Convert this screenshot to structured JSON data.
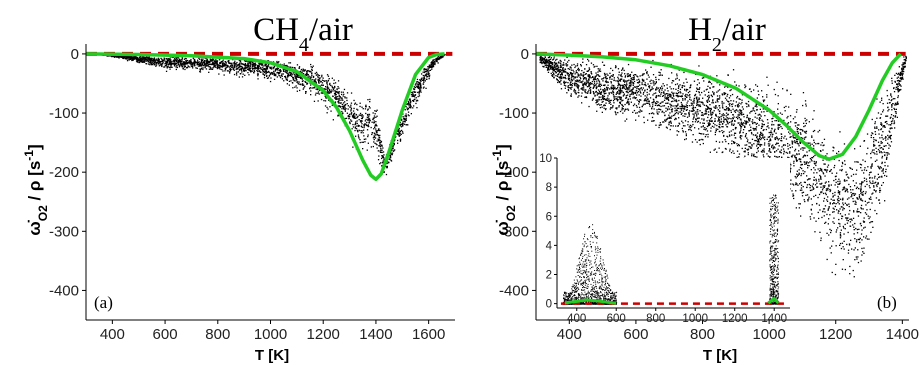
{
  "chart_data": [
    {
      "type": "scatter",
      "panel_label": "(a)",
      "title": "CH4/air",
      "title_parts": [
        "CH",
        "4",
        "/air"
      ],
      "xlabel": "T [K]",
      "ylabel": "ω̇O2 / ρ [s-1]",
      "ylabel_parts": [
        "ω̇",
        "O2",
        " / ρ ",
        "[s",
        "-1",
        "]"
      ],
      "xlim": [
        300,
        1700
      ],
      "ylim": [
        -450,
        10
      ],
      "xticks": [
        400,
        600,
        800,
        1000,
        1200,
        1400,
        1600
      ],
      "yticks": [
        0,
        -100,
        -200,
        -300,
        -400
      ],
      "grid": false,
      "series": [
        {
          "kind": "reference-line",
          "color": "#cc0000",
          "style": "dashed",
          "x": [
            300,
            1690
          ],
          "y": [
            0,
            0
          ]
        },
        {
          "kind": "conditional-mean",
          "color": "#22cc22",
          "x": [
            300,
            500,
            700,
            900,
            1000,
            1100,
            1200,
            1250,
            1300,
            1350,
            1380,
            1400,
            1420,
            1450,
            1500,
            1550,
            1600,
            1630,
            1660
          ],
          "y": [
            0,
            -1,
            -3,
            -8,
            -15,
            -30,
            -62,
            -90,
            -130,
            -180,
            -205,
            -212,
            -203,
            -165,
            -95,
            -35,
            -6,
            -1,
            0
          ]
        },
        {
          "kind": "scatter-band",
          "color": "#000000",
          "x": [
            350,
            450,
            600,
            800,
            1000,
            1150,
            1250,
            1300,
            1330,
            1370,
            1400,
            1430,
            1480,
            1550,
            1620,
            1660
          ],
          "upper": [
            0,
            0,
            -2,
            -4,
            -6,
            -15,
            -35,
            -55,
            -70,
            -60,
            -80,
            -170,
            -110,
            -35,
            -3,
            0
          ],
          "lower": [
            0,
            -12,
            -35,
            -42,
            -58,
            -90,
            -140,
            -185,
            -205,
            -218,
            -222,
            -220,
            -185,
            -110,
            -25,
            0
          ]
        }
      ]
    },
    {
      "type": "scatter",
      "panel_label": "(b)",
      "title": "H2/air",
      "title_parts": [
        "H",
        "2",
        "/air"
      ],
      "xlabel": "T [K]",
      "ylabel": "ω̇O2 / ρ [s-1]",
      "ylabel_parts": [
        "ω̇",
        "O2",
        " / ρ ",
        "[s",
        "-1",
        "]"
      ],
      "xlim": [
        300,
        1420
      ],
      "ylim": [
        -450,
        10
      ],
      "xticks": [
        400,
        600,
        800,
        1000,
        1200,
        1400
      ],
      "yticks": [
        0,
        -100,
        -200,
        -300,
        -400
      ],
      "grid": false,
      "series": [
        {
          "kind": "reference-line",
          "color": "#cc0000",
          "style": "dashed",
          "x": [
            300,
            1410
          ],
          "y": [
            0,
            0
          ]
        },
        {
          "kind": "conditional-mean",
          "color": "#22cc22",
          "x": [
            300,
            400,
            500,
            600,
            700,
            800,
            900,
            1000,
            1050,
            1100,
            1150,
            1180,
            1220,
            1260,
            1300,
            1340,
            1370,
            1395
          ],
          "y": [
            0,
            -2,
            -5,
            -10,
            -20,
            -35,
            -58,
            -95,
            -120,
            -148,
            -172,
            -178,
            -170,
            -140,
            -95,
            -45,
            -15,
            0
          ]
        },
        {
          "kind": "scatter-band",
          "color": "#000000",
          "x": [
            310,
            400,
            500,
            600,
            700,
            800,
            900,
            1000,
            1100,
            1150,
            1200,
            1250,
            1300,
            1350,
            1390,
            1410
          ],
          "upper": [
            5,
            2,
            0,
            -2,
            -5,
            -10,
            -15,
            -25,
            -50,
            -70,
            -100,
            -115,
            -60,
            -20,
            -5,
            0
          ],
          "lower": [
            -20,
            -80,
            -115,
            -125,
            -150,
            -175,
            -210,
            -255,
            -310,
            -345,
            -395,
            -420,
            -370,
            -260,
            -90,
            -10
          ]
        }
      ],
      "inset": {
        "xlim": [
          300,
          1480
        ],
        "ylim": [
          -0.3,
          10
        ],
        "xticks": [
          400,
          600,
          800,
          1000,
          1200,
          1400
        ],
        "yticks": [
          0,
          2,
          4,
          6,
          8,
          10
        ],
        "series": [
          {
            "kind": "reference-line",
            "color": "#cc0000",
            "style": "dashed",
            "x": [
              320,
              1470
            ],
            "y": [
              0,
              0
            ]
          },
          {
            "kind": "conditional-mean",
            "color": "#22cc22",
            "x": [
              340,
              400,
              450,
              500,
              550,
              600,
              1370,
              1400,
              1420
            ],
            "y": [
              0.05,
              0.15,
              0.25,
              0.2,
              0.1,
              0.02,
              0.05,
              0.35,
              0.05
            ]
          },
          {
            "kind": "scatter-cluster",
            "color": "#000000",
            "x_range": [
              330,
              600
            ],
            "max_y": 5.5
          },
          {
            "kind": "scatter-cluster",
            "color": "#000000",
            "x_range": [
              1375,
              1420
            ],
            "max_y": 7.5
          }
        ]
      }
    }
  ]
}
